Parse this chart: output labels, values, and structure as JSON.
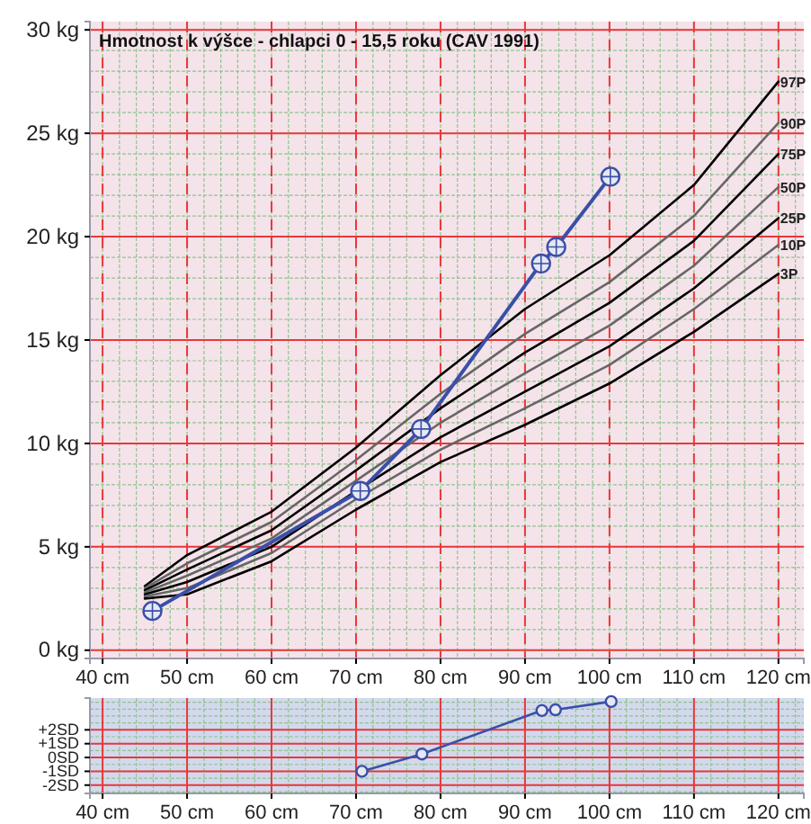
{
  "chart_data": [
    {
      "type": "line",
      "title": "Hmotnost k výšce - chlapci 0 - 15,5 roku (CAV 1991)",
      "xlim": [
        38.5,
        123
      ],
      "ylim": [
        -0.4,
        30.4
      ],
      "xticks": [
        {
          "value": 40,
          "label": "40 cm"
        },
        {
          "value": 50,
          "label": "50 cm"
        },
        {
          "value": 60,
          "label": "60 cm"
        },
        {
          "value": 70,
          "label": "70 cm"
        },
        {
          "value": 80,
          "label": "80 cm"
        },
        {
          "value": 90,
          "label": "90 cm"
        },
        {
          "value": 100,
          "label": "100 cm"
        },
        {
          "value": 110,
          "label": "110 cm"
        },
        {
          "value": 120,
          "label": "120 cm"
        }
      ],
      "yticks": [
        {
          "value": 0,
          "label": "0 kg"
        },
        {
          "value": 5,
          "label": "5 kg"
        },
        {
          "value": 10,
          "label": "10 kg"
        },
        {
          "value": 15,
          "label": "15 kg"
        },
        {
          "value": 20,
          "label": "20 kg"
        },
        {
          "value": 25,
          "label": "25 kg"
        },
        {
          "value": 30,
          "label": "30 kg"
        }
      ],
      "grid": true,
      "marker": "none",
      "line_style": "solid",
      "series": [
        {
          "name": "97P",
          "color": "#000000",
          "x": [
            45,
            50,
            60,
            70,
            80,
            90,
            100,
            110,
            120
          ],
          "values": [
            3.1,
            4.6,
            6.7,
            9.8,
            13.3,
            16.5,
            19.1,
            22.5,
            27.5
          ]
        },
        {
          "name": "90P",
          "color": "#666666",
          "x": [
            45,
            50,
            60,
            70,
            80,
            90,
            100,
            110,
            120
          ],
          "values": [
            3.0,
            4.2,
            6.2,
            9.2,
            12.4,
            15.3,
            17.8,
            21.0,
            25.5
          ]
        },
        {
          "name": "75P",
          "color": "#000000",
          "x": [
            45,
            50,
            60,
            70,
            80,
            90,
            100,
            110,
            120
          ],
          "values": [
            2.9,
            3.9,
            5.8,
            8.7,
            11.7,
            14.4,
            16.8,
            19.8,
            24.0
          ]
        },
        {
          "name": "50P",
          "color": "#666666",
          "x": [
            45,
            50,
            60,
            70,
            80,
            90,
            100,
            110,
            120
          ],
          "values": [
            2.8,
            3.6,
            5.4,
            8.2,
            11.0,
            13.4,
            15.7,
            18.6,
            22.4
          ]
        },
        {
          "name": "25P",
          "color": "#000000",
          "x": [
            45,
            50,
            60,
            70,
            80,
            90,
            100,
            110,
            120
          ],
          "values": [
            2.7,
            3.3,
            5.0,
            7.7,
            10.3,
            12.5,
            14.7,
            17.5,
            20.9
          ]
        },
        {
          "name": "10P",
          "color": "#666666",
          "x": [
            45,
            50,
            60,
            70,
            80,
            90,
            100,
            110,
            120
          ],
          "values": [
            2.6,
            3.0,
            4.7,
            7.3,
            9.7,
            11.7,
            13.8,
            16.5,
            19.6
          ]
        },
        {
          "name": "3P",
          "color": "#000000",
          "x": [
            45,
            50,
            60,
            70,
            80,
            90,
            100,
            110,
            120
          ],
          "values": [
            2.5,
            2.7,
            4.3,
            6.8,
            9.1,
            10.9,
            12.9,
            15.4,
            18.2
          ]
        },
        {
          "color": "#3a4fa8",
          "marker": "circle",
          "x": [
            45.9,
            70.5,
            77.7,
            91.9,
            93.7,
            100.1
          ],
          "values": [
            1.9,
            7.7,
            10.7,
            18.7,
            19.5,
            22.9
          ]
        }
      ]
    },
    {
      "type": "line",
      "xlim": [
        38.5,
        123
      ],
      "ylim": [
        -2.6,
        4.3
      ],
      "xticks": [
        {
          "value": 40,
          "label": "40 cm"
        },
        {
          "value": 50,
          "label": "50 cm"
        },
        {
          "value": 60,
          "label": "60 cm"
        },
        {
          "value": 70,
          "label": "70 cm"
        },
        {
          "value": 80,
          "label": "80 cm"
        },
        {
          "value": 90,
          "label": "90 cm"
        },
        {
          "value": 100,
          "label": "100 cm"
        },
        {
          "value": 110,
          "label": "110 cm"
        },
        {
          "value": 120,
          "label": "120 cm"
        }
      ],
      "yticks": [
        {
          "value": -2,
          "label": "-2SD"
        },
        {
          "value": -1,
          "label": "-1SD"
        },
        {
          "value": 0,
          "label": "0SD"
        },
        {
          "value": 1,
          "label": "+1SD"
        },
        {
          "value": 2,
          "label": "+2SD"
        }
      ],
      "grid": true,
      "marker": "circle",
      "line_style": "solid",
      "series": [
        {
          "color": "#3a4fa8",
          "x": [
            70.7,
            77.8,
            92.0,
            93.6,
            100.2
          ],
          "values": [
            -1.0,
            0.25,
            3.4,
            3.45,
            4.05
          ]
        }
      ]
    }
  ]
}
